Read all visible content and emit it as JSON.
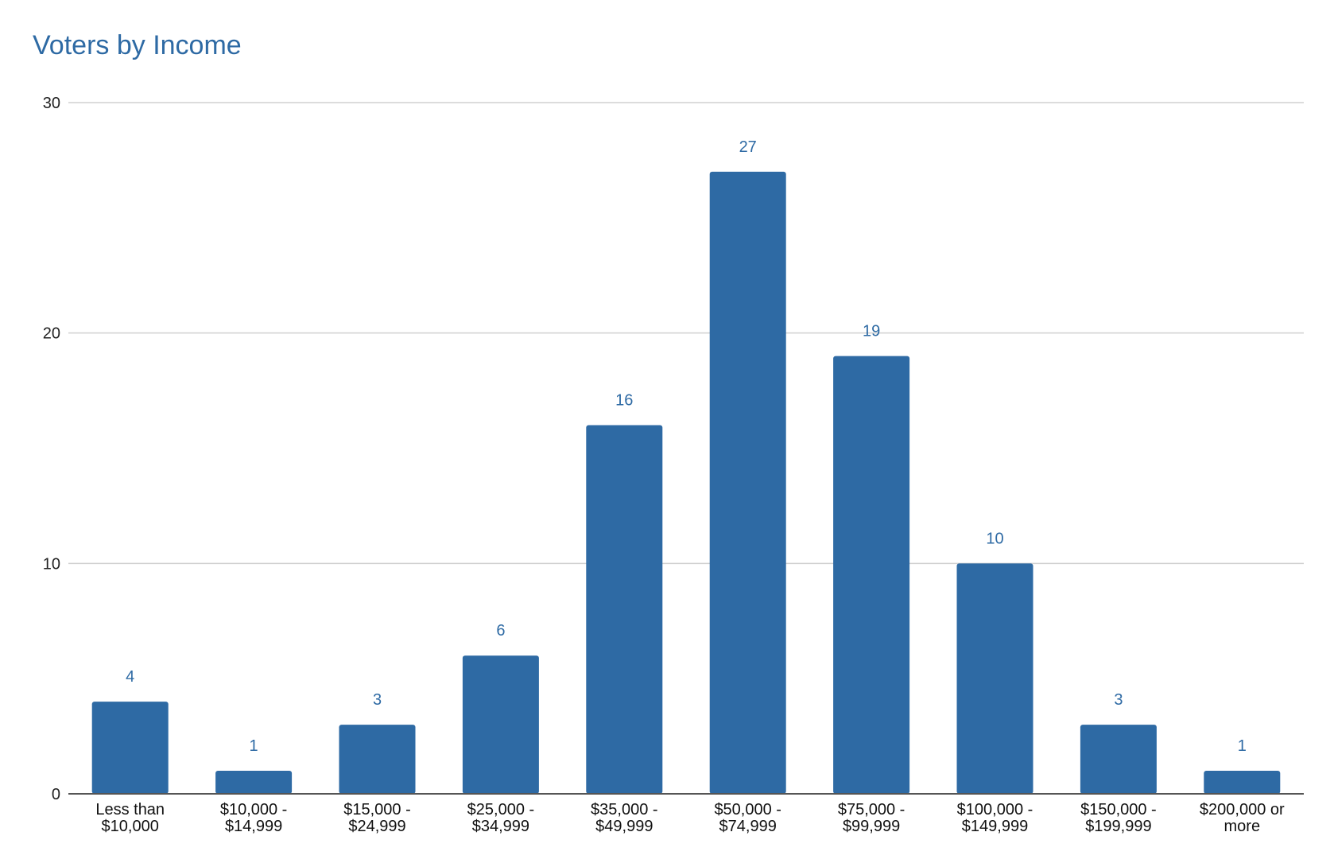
{
  "chart_data": {
    "type": "bar",
    "title": "Voters by Income",
    "xlabel": "",
    "ylabel": "",
    "categories": [
      [
        "Less than",
        "$10,000"
      ],
      [
        "$10,000 -",
        "$14,999"
      ],
      [
        "$15,000 -",
        "$24,999"
      ],
      [
        "$25,000 -",
        "$34,999"
      ],
      [
        "$35,000 -",
        "$49,999"
      ],
      [
        "$50,000 -",
        "$74,999"
      ],
      [
        "$75,000 -",
        "$99,999"
      ],
      [
        "$100,000 -",
        "$149,999"
      ],
      [
        "$150,000 -",
        "$199,999"
      ],
      [
        "$200,000 or",
        "more"
      ]
    ],
    "values": [
      4,
      1,
      3,
      6,
      16,
      27,
      19,
      10,
      3,
      1
    ],
    "ylim": [
      0,
      30
    ],
    "yticks": [
      0,
      10,
      20,
      30
    ],
    "grid": true,
    "legend": "none",
    "data_labels": true,
    "bar_color": "#2e6aa4",
    "label_color": "#2e6aa4",
    "title_color": "#2e6aa4"
  }
}
